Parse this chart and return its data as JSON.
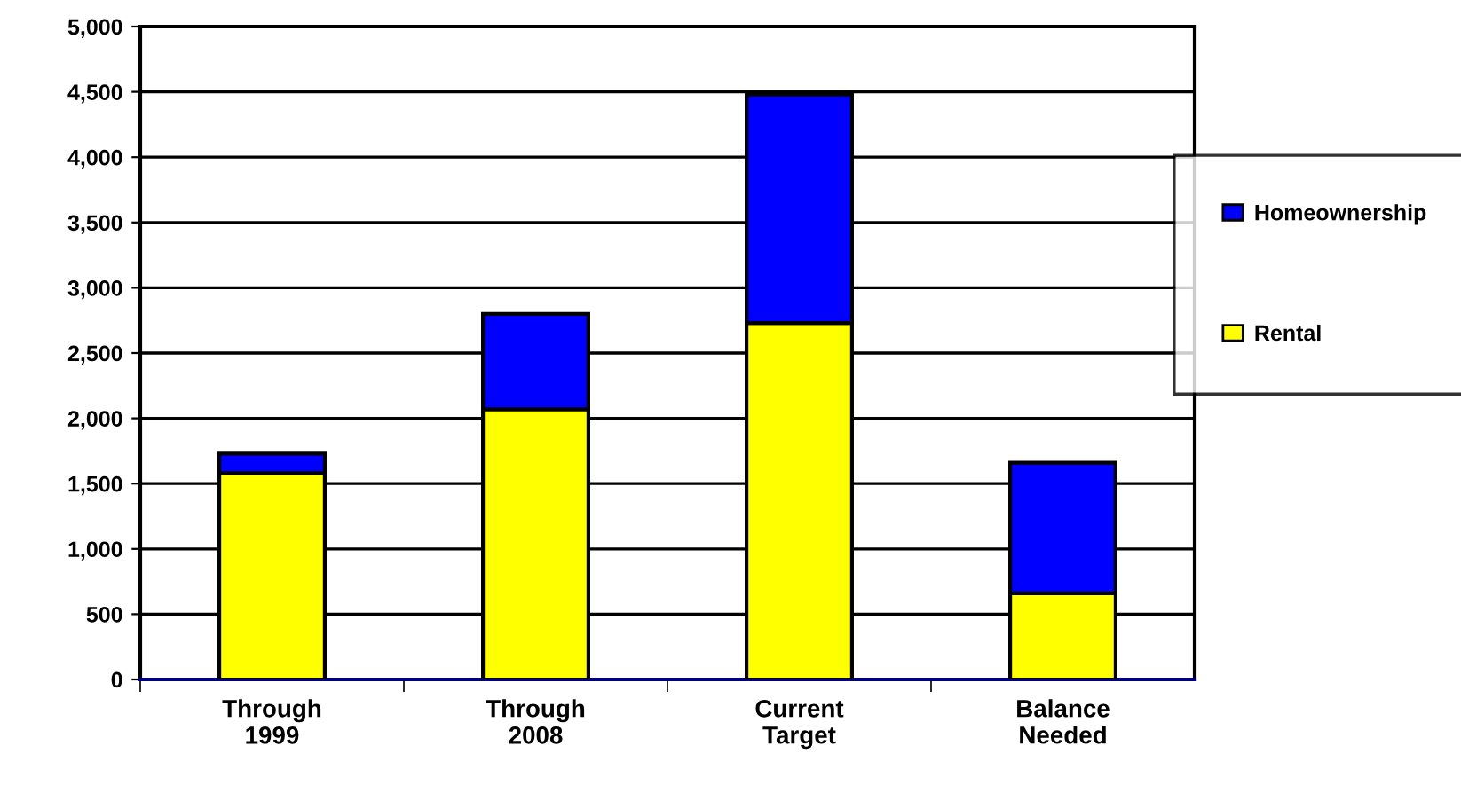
{
  "chart_data": {
    "type": "bar",
    "stacked": true,
    "categories": [
      "Through\n1999",
      "Through\n2008",
      "Current\nTarget",
      "Balance\nNeeded"
    ],
    "series": [
      {
        "name": "Rental",
        "color": "#ffff00",
        "values": [
          1580,
          2070,
          2730,
          660
        ]
      },
      {
        "name": "Homeownership",
        "color": "#0000ff",
        "values": [
          150,
          730,
          1750,
          1000
        ]
      }
    ],
    "ylim": [
      0,
      5000
    ],
    "yticks": [
      {
        "value": 0,
        "label": "0"
      },
      {
        "value": 500,
        "label": "500"
      },
      {
        "value": 1000,
        "label": "1,000"
      },
      {
        "value": 1500,
        "label": "1,500"
      },
      {
        "value": 2000,
        "label": "2,000"
      },
      {
        "value": 2500,
        "label": "2,500"
      },
      {
        "value": 3000,
        "label": "3,000"
      },
      {
        "value": 3500,
        "label": "3,500"
      },
      {
        "value": 4000,
        "label": "4,000"
      },
      {
        "value": 4500,
        "label": "4,500"
      },
      {
        "value": 5000,
        "label": "5,000"
      }
    ],
    "grid": "y",
    "legend": "right"
  }
}
